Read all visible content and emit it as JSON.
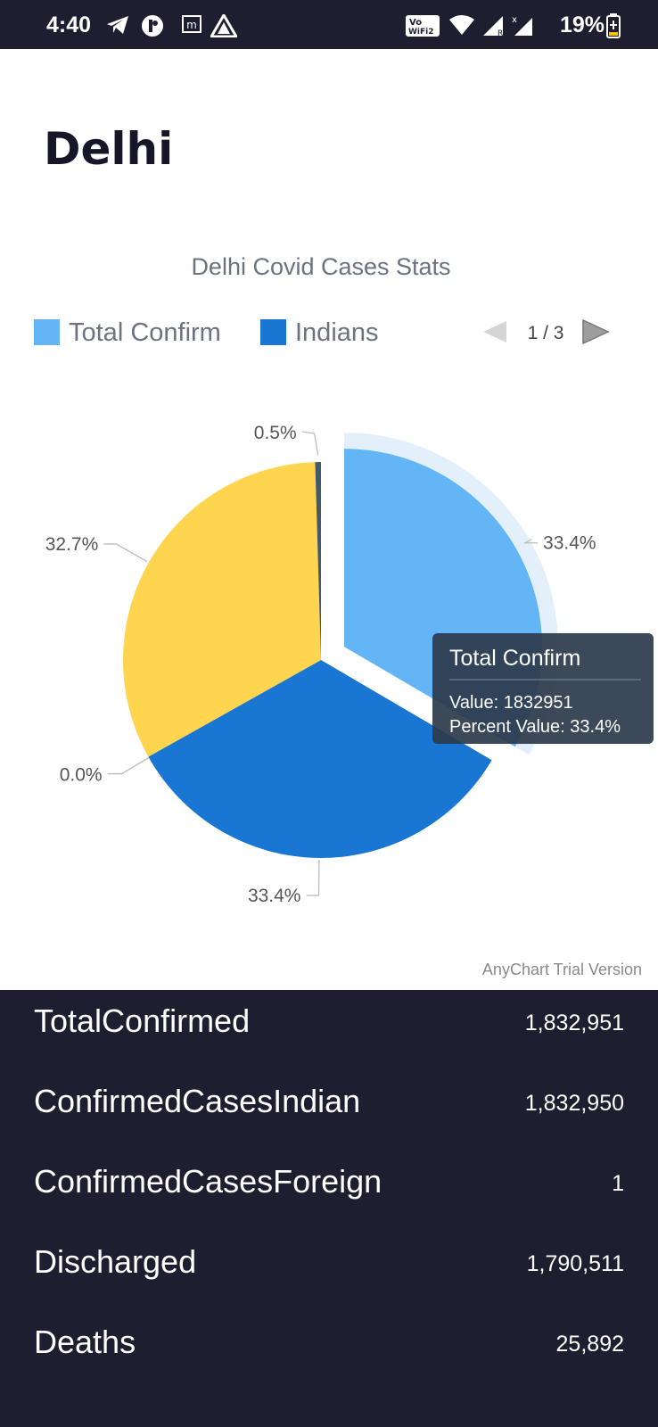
{
  "status_bar": {
    "time": "4:40",
    "battery": "19%",
    "icons": [
      "telegram-icon",
      "app-icon",
      "m-icon",
      "signal-app-icon",
      "vowifi-icon",
      "wifi-icon",
      "signal-r-icon",
      "signal-x-icon",
      "battery-icon"
    ]
  },
  "page": {
    "title": "Delhi"
  },
  "chart": {
    "pager": "1 / 3",
    "watermark": "AnyChart Trial Version",
    "tooltip": {
      "title": "Total Confirm",
      "value_line": "Value: 1832951",
      "percent_line": "Percent Value: 33.4%"
    }
  },
  "chart_data": {
    "type": "pie",
    "title": "Delhi Covid Cases Stats",
    "legend_position": "top-left",
    "legend_visible": [
      "Total Confirm",
      "Indians"
    ],
    "slices": [
      {
        "name": "Total Confirm",
        "value": 1832951,
        "percent_label": "33.4%",
        "color": "#64b5f6",
        "exploded": true
      },
      {
        "name": "Indians",
        "value": 1832950,
        "percent_label": "33.4%",
        "color": "#1976d2"
      },
      {
        "name": "",
        "value": 1,
        "percent_label": "0.0%",
        "color": "#ef6c00"
      },
      {
        "name": "",
        "value": 1790511,
        "percent_label": "32.7%",
        "color": "#ffd54f"
      },
      {
        "name": "",
        "value": 25892,
        "percent_label": "0.5%",
        "color": "#455a64"
      }
    ]
  },
  "stats": [
    {
      "label": "TotalConfirmed",
      "value": "1,832,951"
    },
    {
      "label": "ConfirmedCasesIndian",
      "value": "1,832,950"
    },
    {
      "label": "ConfirmedCasesForeign",
      "value": "1"
    },
    {
      "label": "Discharged",
      "value": "1,790,511"
    },
    {
      "label": "Deaths",
      "value": "25,892"
    }
  ],
  "colors": {
    "dark_background": "#1f1e30",
    "text_light": "#ffffff"
  }
}
